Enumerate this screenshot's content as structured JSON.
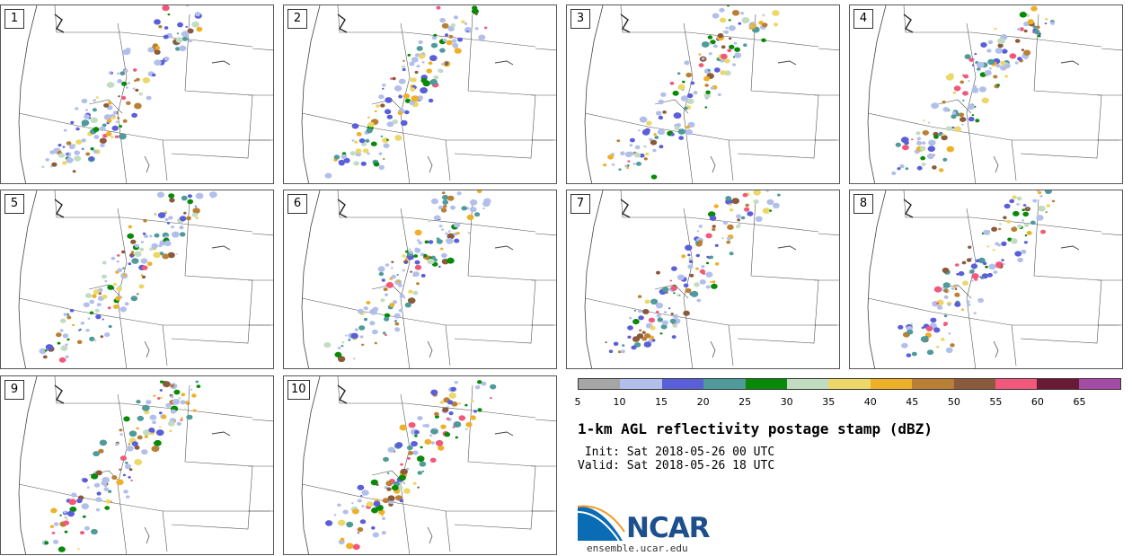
{
  "members": [
    "1",
    "2",
    "3",
    "4",
    "5",
    "6",
    "7",
    "8",
    "9",
    "10"
  ],
  "colorbar": {
    "ticks": [
      "5",
      "10",
      "15",
      "20",
      "25",
      "30",
      "35",
      "40",
      "45",
      "50",
      "55",
      "60",
      "65"
    ],
    "colors": [
      "#a6a6a6",
      "#b3bfeb",
      "#5a5fd9",
      "#4f9a9a",
      "#088a08",
      "#c2dcc2",
      "#ecd868",
      "#eeb027",
      "#b98035",
      "#8a5a3b",
      "#f2587c",
      "#6b1a36",
      "#a54aa5"
    ]
  },
  "title": "1-km AGL reflectivity postage stamp (dBZ)",
  "init_line": " Init: Sat 2018-05-26 00 UTC",
  "valid_line": "Valid: Sat 2018-05-26 18 UTC",
  "logo": {
    "name": "NCAR",
    "url": "ensemble.ucar.edu"
  }
}
